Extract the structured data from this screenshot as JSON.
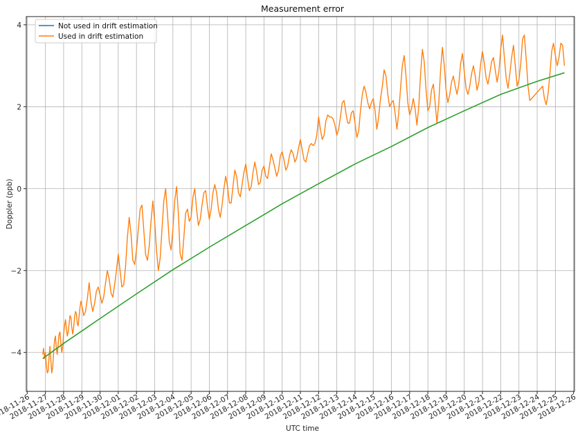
{
  "chart_data": {
    "type": "line",
    "title": "Measurement error",
    "xlabel": "UTC time",
    "ylabel": "Doppler (ppb)",
    "x_ticks": [
      "2018-11-26",
      "2018-11-27",
      "2018-11-28",
      "2018-11-29",
      "2018-11-30",
      "2018-12-01",
      "2018-12-02",
      "2018-12-03",
      "2018-12-04",
      "2018-12-05",
      "2018-12-06",
      "2018-12-07",
      "2018-12-08",
      "2018-12-09",
      "2018-12-10",
      "2018-12-11",
      "2018-12-12",
      "2018-12-13",
      "2018-12-14",
      "2018-12-15",
      "2018-12-16",
      "2018-12-17",
      "2018-12-18",
      "2018-12-19",
      "2018-12-20",
      "2018-12-21",
      "2018-12-22",
      "2018-12-23",
      "2018-12-24",
      "2018-12-25",
      "2018-12-26"
    ],
    "y_ticks": [
      "−4",
      "−2",
      "0",
      "2",
      "4"
    ],
    "xlim": [
      "2018-11-26T00:00",
      "2018-12-26T00:00"
    ],
    "xrange_days": [
      -0.05,
      30.05
    ],
    "ylim": [
      -4.95,
      4.2
    ],
    "grid": true,
    "legend_position": "top-left",
    "legend": [
      "Not used in drift estimation",
      "Used in drift estimation"
    ],
    "series": [
      {
        "name": "Not used in drift estimation",
        "color": "#1f77b4",
        "x": [],
        "y": []
      },
      {
        "name": "Used in drift estimation",
        "color": "#ff7f0e",
        "x": [
          0.85,
          0.9,
          0.95,
          1.0,
          1.05,
          1.1,
          1.15,
          1.2,
          1.25,
          1.3,
          1.35,
          1.4,
          1.45,
          1.5,
          1.55,
          1.6,
          1.65,
          1.7,
          1.75,
          1.8,
          1.85,
          1.9,
          1.95,
          2.0,
          2.05,
          2.1,
          2.15,
          2.2,
          2.25,
          2.3,
          2.35,
          2.4,
          2.45,
          2.5,
          2.55,
          2.6,
          2.65,
          2.7,
          2.75,
          2.8,
          2.85,
          2.9,
          2.95,
          3.0,
          3.1,
          3.2,
          3.3,
          3.4,
          3.5,
          3.6,
          3.7,
          3.8,
          3.9,
          4.0,
          4.1,
          4.2,
          4.3,
          4.4,
          4.5,
          4.6,
          4.7,
          4.8,
          4.9,
          5.0,
          5.1,
          5.2,
          5.3,
          5.4,
          5.5,
          5.6,
          5.7,
          5.8,
          5.9,
          6.0,
          6.1,
          6.2,
          6.3,
          6.4,
          6.5,
          6.6,
          6.7,
          6.8,
          6.9,
          7.0,
          7.1,
          7.2,
          7.3,
          7.4,
          7.5,
          7.6,
          7.7,
          7.8,
          7.9,
          8.0,
          8.1,
          8.2,
          8.3,
          8.4,
          8.5,
          8.6,
          8.7,
          8.8,
          8.9,
          9.0,
          9.1,
          9.2,
          9.3,
          9.4,
          9.5,
          9.6,
          9.7,
          9.8,
          9.9,
          10.0,
          10.1,
          10.2,
          10.3,
          10.4,
          10.5,
          10.6,
          10.7,
          10.8,
          10.9,
          11.0,
          11.1,
          11.2,
          11.3,
          11.4,
          11.5,
          11.6,
          11.7,
          11.8,
          11.9,
          12.0,
          12.1,
          12.2,
          12.3,
          12.4,
          12.5,
          12.6,
          12.7,
          12.8,
          12.9,
          13.0,
          13.1,
          13.2,
          13.3,
          13.4,
          13.5,
          13.6,
          13.7,
          13.8,
          13.9,
          14.0,
          14.1,
          14.2,
          14.3,
          14.4,
          14.5,
          14.6,
          14.7,
          14.8,
          14.9,
          15.0,
          15.1,
          15.2,
          15.3,
          15.4,
          15.5,
          15.6,
          15.7,
          15.8,
          15.9,
          16.0,
          16.1,
          16.2,
          16.3,
          16.4,
          16.5,
          16.6,
          16.7,
          16.8,
          16.9,
          17.0,
          17.1,
          17.2,
          17.3,
          17.4,
          17.5,
          17.6,
          17.7,
          17.8,
          17.9,
          18.0,
          18.1,
          18.2,
          18.3,
          18.4,
          18.5,
          18.6,
          18.7,
          18.8,
          18.9,
          19.0,
          19.1,
          19.2,
          19.3,
          19.4,
          19.5,
          19.6,
          19.7,
          19.8,
          19.9,
          20.0,
          20.1,
          20.2,
          20.3,
          20.4,
          20.5,
          20.6,
          20.7,
          20.8,
          20.9,
          21.0,
          21.1,
          21.2,
          21.3,
          21.4,
          21.5,
          21.6,
          21.7,
          21.8,
          21.9,
          22.0,
          22.1,
          22.2,
          22.3,
          22.4,
          22.5,
          22.6,
          22.7,
          22.8,
          22.9,
          23.0,
          23.1,
          23.2,
          23.3,
          23.4,
          23.5,
          23.6,
          23.7,
          23.8,
          23.9,
          24.0,
          24.1,
          24.2,
          24.3,
          24.4,
          24.5,
          24.6,
          24.7,
          24.8,
          24.9,
          25.0,
          25.1,
          25.2,
          25.3,
          25.4,
          25.5,
          25.6,
          25.7,
          25.8,
          25.9,
          26.0,
          26.1,
          26.2,
          26.3,
          26.4,
          26.5,
          26.6,
          26.7,
          26.8,
          26.9,
          27.0,
          27.1,
          27.2,
          27.3,
          27.4,
          27.5,
          27.6,
          27.7,
          27.8,
          27.9,
          28.0,
          28.1,
          28.2,
          28.3,
          28.4,
          28.5,
          28.6,
          28.7,
          28.8,
          28.9,
          29.0,
          29.1,
          29.2,
          29.3,
          29.4,
          29.5
        ],
        "y": [
          -4.05,
          -3.9,
          -4.15,
          -4.0,
          -4.3,
          -4.5,
          -4.45,
          -4.1,
          -3.85,
          -4.2,
          -4.5,
          -4.35,
          -4.0,
          -3.7,
          -3.6,
          -3.9,
          -4.05,
          -3.8,
          -3.55,
          -3.5,
          -3.8,
          -4.0,
          -3.85,
          -3.55,
          -3.35,
          -3.2,
          -3.4,
          -3.6,
          -3.5,
          -3.3,
          -3.1,
          -3.15,
          -3.4,
          -3.55,
          -3.4,
          -3.15,
          -3.0,
          -3.05,
          -3.3,
          -3.35,
          -3.1,
          -2.9,
          -2.75,
          -2.85,
          -3.1,
          -3.0,
          -2.7,
          -2.3,
          -2.75,
          -3.0,
          -2.8,
          -2.5,
          -2.4,
          -2.6,
          -2.8,
          -2.65,
          -2.3,
          -2.0,
          -2.2,
          -2.55,
          -2.65,
          -2.35,
          -2.0,
          -1.6,
          -2.0,
          -2.4,
          -2.35,
          -1.9,
          -1.2,
          -0.7,
          -1.1,
          -1.75,
          -1.85,
          -1.5,
          -1.0,
          -0.5,
          -0.4,
          -1.0,
          -1.6,
          -1.75,
          -1.4,
          -0.8,
          -0.3,
          -0.8,
          -1.5,
          -2.0,
          -1.7,
          -1.0,
          -0.3,
          0.0,
          -0.6,
          -1.3,
          -1.5,
          -1.0,
          -0.3,
          0.05,
          -0.6,
          -1.6,
          -1.75,
          -1.2,
          -0.6,
          -0.5,
          -0.8,
          -0.7,
          -0.2,
          0.0,
          -0.5,
          -0.9,
          -0.75,
          -0.4,
          -0.1,
          -0.05,
          -0.45,
          -0.75,
          -0.5,
          -0.1,
          0.1,
          -0.1,
          -0.5,
          -0.7,
          -0.4,
          0.0,
          0.3,
          0.05,
          -0.35,
          -0.35,
          0.05,
          0.45,
          0.3,
          -0.1,
          -0.2,
          0.1,
          0.4,
          0.6,
          0.25,
          -0.05,
          0.05,
          0.4,
          0.65,
          0.4,
          0.1,
          0.15,
          0.45,
          0.55,
          0.3,
          0.25,
          0.55,
          0.85,
          0.7,
          0.5,
          0.3,
          0.45,
          0.8,
          0.9,
          0.7,
          0.45,
          0.55,
          0.8,
          0.95,
          0.85,
          0.65,
          0.75,
          1.0,
          1.2,
          0.95,
          0.7,
          0.65,
          0.85,
          1.05,
          1.1,
          1.05,
          1.1,
          1.3,
          1.75,
          1.45,
          1.2,
          1.3,
          1.65,
          1.8,
          1.75,
          1.75,
          1.7,
          1.55,
          1.3,
          1.45,
          1.75,
          2.1,
          2.15,
          1.85,
          1.6,
          1.6,
          1.85,
          1.9,
          1.6,
          1.25,
          1.4,
          1.9,
          2.3,
          2.5,
          2.35,
          2.1,
          1.95,
          2.1,
          2.2,
          1.9,
          1.45,
          1.75,
          2.2,
          2.5,
          2.9,
          2.75,
          2.3,
          2.0,
          2.1,
          2.15,
          1.85,
          1.45,
          1.85,
          2.45,
          3.0,
          3.25,
          2.75,
          2.1,
          1.8,
          1.95,
          2.2,
          1.95,
          1.55,
          2.0,
          2.8,
          3.4,
          3.1,
          2.4,
          1.9,
          2.0,
          2.4,
          2.55,
          2.1,
          1.6,
          2.1,
          2.9,
          3.45,
          3.0,
          2.4,
          2.1,
          2.3,
          2.6,
          2.75,
          2.5,
          2.3,
          2.55,
          3.05,
          3.3,
          2.85,
          2.45,
          2.3,
          2.5,
          2.8,
          3.0,
          2.75,
          2.4,
          2.6,
          3.05,
          3.35,
          3.05,
          2.7,
          2.55,
          2.8,
          3.1,
          3.2,
          2.9,
          2.6,
          2.85,
          3.4,
          3.75,
          3.2,
          2.7,
          2.45,
          2.8,
          3.2,
          3.5,
          3.0,
          2.5,
          2.65,
          3.05,
          3.65,
          3.75,
          3.15,
          2.5,
          2.15,
          2.2,
          2.25,
          2.3,
          2.35,
          2.4,
          2.45,
          2.5,
          2.2,
          2.05,
          2.3,
          2.8,
          3.35,
          3.55,
          3.25,
          3.0,
          3.2,
          3.55,
          3.5,
          3.0
        ]
      },
      {
        "name": "",
        "color": "#2ca02c",
        "x": [
          0.85,
          2,
          4,
          6,
          8,
          10,
          12,
          14,
          16,
          18,
          20,
          22,
          24,
          26,
          28,
          29.5
        ],
        "y": [
          -4.15,
          -3.78,
          -3.17,
          -2.57,
          -1.98,
          -1.43,
          -0.9,
          -0.37,
          0.12,
          0.6,
          1.03,
          1.49,
          1.9,
          2.3,
          2.62,
          2.83
        ]
      }
    ]
  }
}
